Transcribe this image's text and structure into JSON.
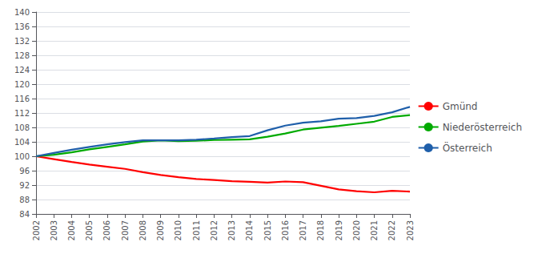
{
  "chart_data": {
    "type": "line",
    "x": [
      2002,
      2003,
      2004,
      2005,
      2006,
      2007,
      2008,
      2009,
      2010,
      2011,
      2012,
      2013,
      2014,
      2015,
      2016,
      2017,
      2018,
      2019,
      2020,
      2021,
      2022,
      2023
    ],
    "xlim": [
      2002,
      2023
    ],
    "xticks": [
      2002,
      2003,
      2004,
      2005,
      2006,
      2007,
      2008,
      2009,
      2010,
      2011,
      2012,
      2013,
      2014,
      2015,
      2016,
      2017,
      2018,
      2019,
      2020,
      2021,
      2022,
      2023
    ],
    "series": [
      {
        "name": "Gmünd",
        "color": "#ff0000",
        "values": [
          100.0,
          99.2,
          98.4,
          97.7,
          97.1,
          96.5,
          95.6,
          94.8,
          94.2,
          93.7,
          93.4,
          93.1,
          92.9,
          92.7,
          93.0,
          92.8,
          91.8,
          90.8,
          90.3,
          90.0,
          90.4,
          90.2
        ]
      },
      {
        "name": "Niederösterreich",
        "color": "#00aa00",
        "values": [
          100.0,
          100.4,
          101.1,
          101.9,
          102.6,
          103.3,
          104.1,
          104.4,
          104.2,
          104.3,
          104.5,
          104.6,
          104.7,
          105.4,
          106.3,
          107.4,
          107.9,
          108.4,
          109.0,
          109.6,
          110.9,
          111.4
        ]
      },
      {
        "name": "Österreich",
        "color": "#1f5faa",
        "values": [
          100.0,
          100.9,
          101.8,
          102.6,
          103.3,
          103.9,
          104.4,
          104.4,
          104.4,
          104.6,
          104.9,
          105.3,
          105.6,
          107.2,
          108.5,
          109.3,
          109.7,
          110.4,
          110.6,
          111.2,
          112.2,
          113.7
        ]
      }
    ],
    "ylim": [
      84,
      140
    ],
    "yticks": [
      84,
      88,
      92,
      96,
      100,
      104,
      108,
      112,
      116,
      120,
      124,
      128,
      132,
      136,
      140
    ],
    "grid": true,
    "legend": "right"
  }
}
